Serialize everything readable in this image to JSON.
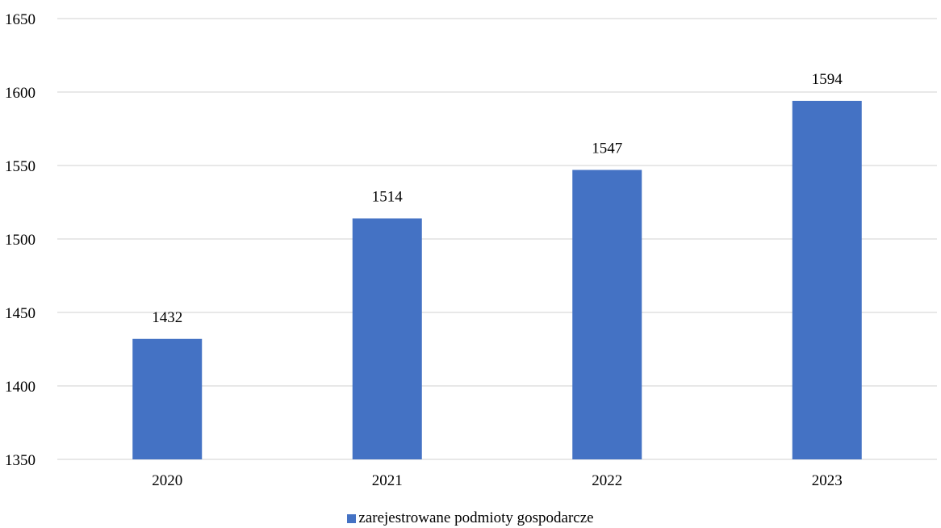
{
  "chart_data": {
    "type": "bar",
    "categories": [
      "2020",
      "2021",
      "2022",
      "2023"
    ],
    "series": [
      {
        "name": "zarejestrowane podmioty gospodarcze",
        "values": [
          1432,
          1514,
          1547,
          1594
        ],
        "color": "#4472C4"
      }
    ],
    "data_labels": [
      "1432",
      "1514",
      "1547",
      "1594"
    ],
    "y_ticks": [
      "1350",
      "1400",
      "1450",
      "1500",
      "1550",
      "1600",
      "1650"
    ],
    "ylim": [
      1350,
      1650
    ],
    "title": "",
    "xlabel": "",
    "ylabel": "",
    "grid": true,
    "legend_position": "bottom",
    "gridline_color": "#D9D9D9"
  },
  "legend": {
    "label": "zarejestrowane podmioty gospodarcze",
    "color": "#4472C4"
  }
}
